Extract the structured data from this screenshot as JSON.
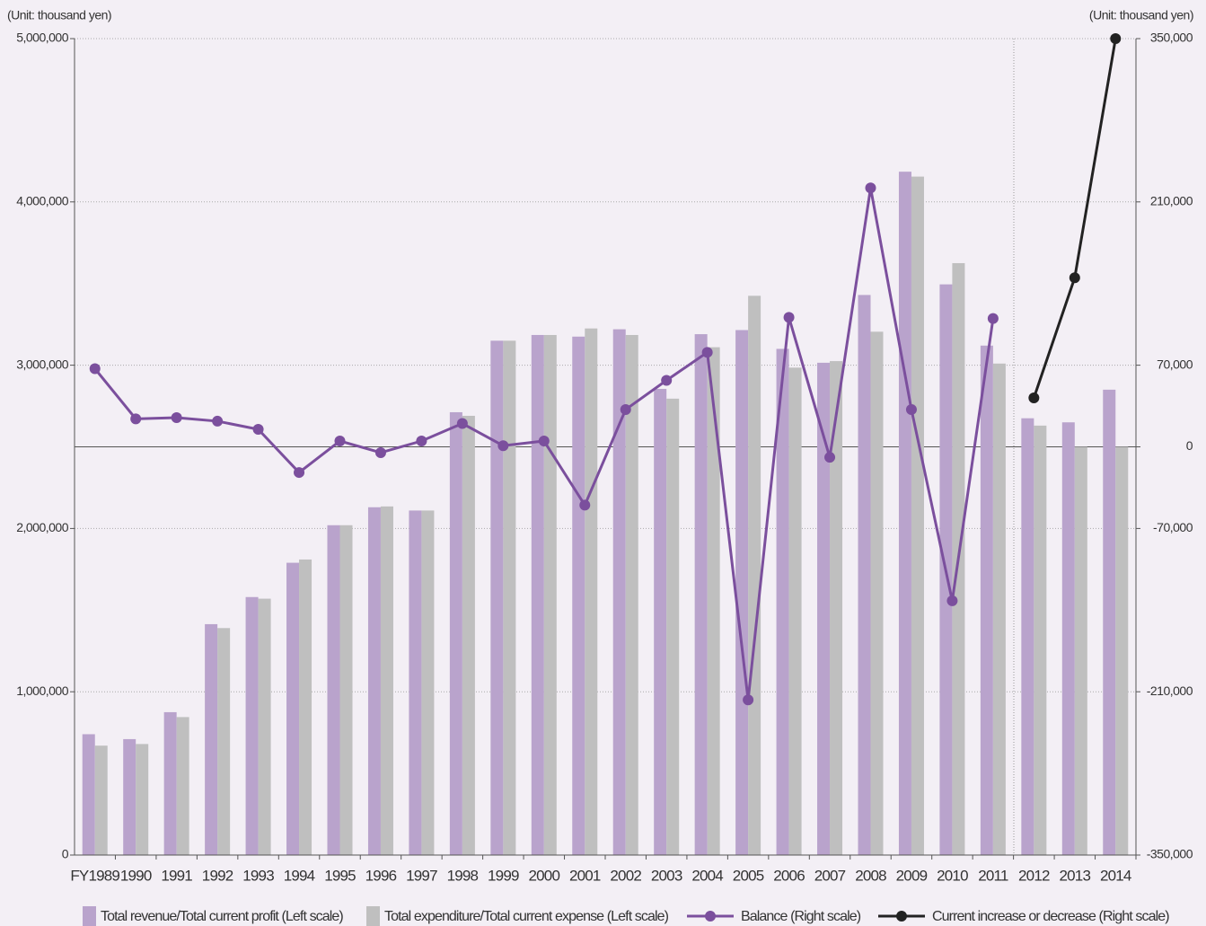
{
  "chart_data": {
    "type": "bar",
    "y_label": "(Unit: thousand yen)",
    "y2_label": "(Unit: thousand yen)",
    "categories": [
      "FY1989",
      "1990",
      "1991",
      "1992",
      "1993",
      "1994",
      "1995",
      "1996",
      "1997",
      "1998",
      "1999",
      "2000",
      "2001",
      "2002",
      "2003",
      "2004",
      "2005",
      "2006",
      "2007",
      "2008",
      "2009",
      "2010",
      "2011",
      "2012",
      "2013",
      "2014"
    ],
    "ylim": [
      0,
      5000000
    ],
    "yticks": [
      0,
      {
        "value": 1000000,
        "label": "1,000,000"
      },
      {
        "value": 2000000,
        "label": "2,000,000"
      },
      {
        "value": 3000000,
        "label": "3,000,000"
      },
      {
        "value": 4000000,
        "label": "4,000,000"
      },
      {
        "value": 5000000,
        "label": "5,000,000"
      }
    ],
    "y2lim": [
      -350000,
      350000
    ],
    "y2ticks": [
      {
        "value": -350000,
        "label": "-350,000"
      },
      {
        "value": -210000,
        "label": "-210,000"
      },
      {
        "value": -70000,
        "label": "-70,000"
      },
      0,
      {
        "value": 70000,
        "label": "70,000"
      },
      {
        "value": 210000,
        "label": "210,000"
      },
      {
        "value": 350000,
        "label": "350,000"
      }
    ],
    "grid": true,
    "legend": "bottom",
    "series": [
      {
        "name": "Total revenue/Total current profit (Left scale)",
        "type": "bar",
        "color": "#b9a3cc",
        "values": [
          740000,
          710000,
          875000,
          1414000,
          1580000,
          1790000,
          2020000,
          2130000,
          2110000,
          2712000,
          3150000,
          3185000,
          3175000,
          3220000,
          2855000,
          3190000,
          3215000,
          3100000,
          3015000,
          3430000,
          4185000,
          3495000,
          3120000,
          2675000,
          2650000,
          2850000
        ]
      },
      {
        "name": "Total expenditure/Total current expense (Left scale)",
        "type": "bar",
        "color": "#bfbfbf",
        "values": [
          670000,
          680000,
          845000,
          1390000,
          1570000,
          1810000,
          2020000,
          2135000,
          2110000,
          2690000,
          3150000,
          3185000,
          3225000,
          3185000,
          2795000,
          3110000,
          3425000,
          2985000,
          3025000,
          3205000,
          4155000,
          3625000,
          3010000,
          2630000,
          2500000,
          2500000
        ]
      },
      {
        "name": "Balance (Right scale)",
        "type": "line",
        "axis": "y2",
        "color": "#7b4f9d",
        "values": [
          67000,
          24000,
          25000,
          22000,
          15000,
          -22000,
          5000,
          -5000,
          5000,
          20000,
          1000,
          5000,
          -50000,
          32000,
          57000,
          81000,
          -217000,
          111000,
          -9000,
          222000,
          32000,
          -132000,
          110000,
          null,
          null,
          null
        ]
      },
      {
        "name": "Current increase or decrease (Right scale)",
        "type": "line",
        "axis": "y2",
        "color": "#222222",
        "values": [
          null,
          null,
          null,
          null,
          null,
          null,
          null,
          null,
          null,
          null,
          null,
          null,
          null,
          null,
          null,
          null,
          null,
          null,
          null,
          null,
          null,
          null,
          null,
          42000,
          145000,
          350000
        ]
      }
    ]
  }
}
